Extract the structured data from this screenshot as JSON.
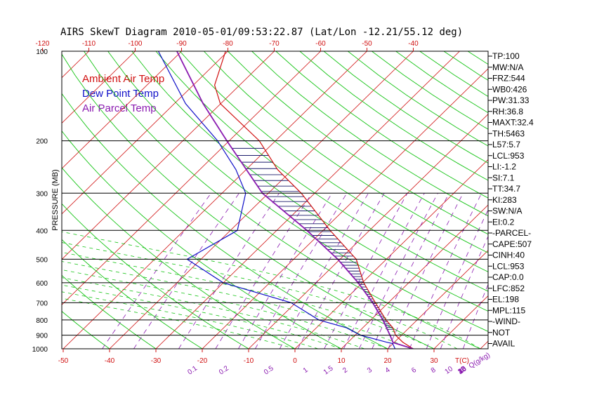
{
  "chart_data": {
    "type": "line",
    "title": "AIRS SkewT Diagram 2010-05-01/09:53:22.87 (Lat/Lon -12.21/55.12 deg)",
    "ylabel": "PRESSURE (MB)",
    "xlabel": "T(C)",
    "mixing_ratio_unit": "Q(g/kg)",
    "pressure_ticks": [
      100,
      200,
      300,
      400,
      500,
      600,
      700,
      800,
      900,
      1000
    ],
    "pressure_range": [
      100,
      1000
    ],
    "bottom_temp_ticks": [
      -50,
      -40,
      -30,
      -20,
      -10,
      0,
      10,
      20,
      30
    ],
    "top_temp_ticks": [
      -120,
      -110,
      -100,
      -90,
      -80,
      -70,
      -60,
      -50,
      -40
    ],
    "mixing_ratio_labels": [
      "0.1",
      "0.2",
      "0.5",
      "1",
      "1.5",
      "2",
      "3",
      "4",
      "6",
      "8",
      "10",
      "12",
      "15",
      "20",
      "25",
      "30",
      "40"
    ],
    "grid": true,
    "legend_position": "top-left",
    "legend": [
      {
        "name": "Ambient Air Temp",
        "color": "#d01010"
      },
      {
        "name": "Dew Point Temp",
        "color": "#1010c8"
      },
      {
        "name": "Air Parcel Temp",
        "color": "#8a1ab0"
      }
    ],
    "series": [
      {
        "name": "Ambient Air Temp",
        "color": "#d01010",
        "points": [
          {
            "p": 1000,
            "t": 25.5
          },
          {
            "p": 950,
            "t": 21.8
          },
          {
            "p": 900,
            "t": 18.7
          },
          {
            "p": 850,
            "t": 16.5
          },
          {
            "p": 800,
            "t": 13.3
          },
          {
            "p": 700,
            "t": 7.2
          },
          {
            "p": 600,
            "t": 0.3
          },
          {
            "p": 500,
            "t": -6.5
          },
          {
            "p": 400,
            "t": -18.5
          },
          {
            "p": 300,
            "t": -32.9
          },
          {
            "p": 250,
            "t": -43.2
          },
          {
            "p": 200,
            "t": -53.5
          },
          {
            "p": 150,
            "t": -70.1
          },
          {
            "p": 130,
            "t": -75.4
          },
          {
            "p": 100,
            "t": -80.5
          }
        ]
      },
      {
        "name": "Dew Point Temp",
        "color": "#1010c8",
        "points": [
          {
            "p": 1000,
            "t": 21.6
          },
          {
            "p": 960,
            "t": 19.9
          },
          {
            "p": 950,
            "t": 18.3
          },
          {
            "p": 900,
            "t": 11.1
          },
          {
            "p": 850,
            "t": 6.5
          },
          {
            "p": 800,
            "t": -1.2
          },
          {
            "p": 700,
            "t": -11.0
          },
          {
            "p": 600,
            "t": -30.0
          },
          {
            "p": 500,
            "t": -43.0
          },
          {
            "p": 400,
            "t": -38.5
          },
          {
            "p": 300,
            "t": -44.9
          },
          {
            "p": 250,
            "t": -52.2
          },
          {
            "p": 200,
            "t": -62.5
          },
          {
            "p": 150,
            "t": -77.6
          },
          {
            "p": 100,
            "t": -95.0
          }
        ]
      },
      {
        "name": "Air Parcel Temp",
        "color": "#8a1ab0",
        "points": [
          {
            "p": 1000,
            "t": 25.5
          },
          {
            "p": 953,
            "t": 19.8
          },
          {
            "p": 900,
            "t": 17.5
          },
          {
            "p": 800,
            "t": 12.6
          },
          {
            "p": 700,
            "t": 6.6
          },
          {
            "p": 600,
            "t": -0.9
          },
          {
            "p": 500,
            "t": -10.5
          },
          {
            "p": 400,
            "t": -23.5
          },
          {
            "p": 300,
            "t": -41.3
          },
          {
            "p": 200,
            "t": -60.5
          },
          {
            "p": 150,
            "t": -73.8
          },
          {
            "p": 100,
            "t": -91.0
          }
        ]
      }
    ],
    "indices": [
      "TP:100",
      "MW:N/A",
      "FRZ:544",
      "WB0:426",
      "PW:31.33",
      "RH:36.8",
      "MAXT:32.4",
      "TH:5463",
      "L57:5.7",
      "LCL:953",
      "LI:-1.2",
      "SI:7.1",
      "TT:34.7",
      "KI:283",
      "SW:N/A",
      "EI:0.2",
      "-PARCEL-",
      "CAPE:507",
      "CINH:40",
      "LCL:953",
      "CAP:0.0",
      "LFC:852",
      "EL:198",
      "MPL:115",
      "-WIND-",
      "NOT",
      "AVAIL"
    ]
  }
}
